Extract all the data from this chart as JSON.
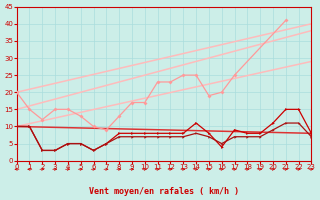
{
  "background_color": "#cceee8",
  "grid_color": "#aadddd",
  "xlabel": "Vent moyen/en rafales ( km/h )",
  "xlabel_color": "#cc0000",
  "xlabel_fontsize": 6,
  "xlim": [
    0,
    23
  ],
  "ylim": [
    0,
    45
  ],
  "yticks": [
    0,
    5,
    10,
    15,
    20,
    25,
    30,
    35,
    40,
    45
  ],
  "xticks": [
    0,
    1,
    2,
    3,
    4,
    5,
    6,
    7,
    8,
    9,
    10,
    11,
    12,
    13,
    14,
    15,
    16,
    17,
    18,
    19,
    20,
    21,
    22,
    23
  ],
  "x": [
    0,
    1,
    2,
    3,
    4,
    5,
    6,
    7,
    8,
    9,
    10,
    11,
    12,
    13,
    14,
    15,
    16,
    17,
    18,
    19,
    20,
    21,
    22,
    23
  ],
  "line_straight1": [
    20,
    40
  ],
  "line_straight2": [
    15,
    38
  ],
  "line_straight3": [
    10,
    29
  ],
  "line_straight4": [
    10,
    8
  ],
  "series_pink": [
    20,
    15,
    12,
    15,
    15,
    13,
    10,
    9,
    13,
    17,
    17,
    23,
    23,
    25,
    25,
    19,
    20,
    25,
    null,
    null,
    null,
    41,
    null,
    null
  ],
  "series_darkred": [
    10,
    10,
    3,
    3,
    5,
    5,
    3,
    5,
    8,
    8,
    8,
    8,
    8,
    8,
    11,
    8,
    4,
    9,
    8,
    8,
    11,
    15,
    15,
    8
  ],
  "series_darkred2": [
    10,
    10,
    3,
    3,
    5,
    5,
    3,
    5,
    7,
    7,
    7,
    7,
    7,
    7,
    8,
    7,
    5,
    7,
    7,
    7,
    9,
    11,
    11,
    7
  ],
  "tick_fontsize": 5,
  "marker_size": 2.0,
  "lw_pink": 0.9,
  "lw_red": 0.9,
  "lw_straight": 1.1,
  "pink_color": "#ff9999",
  "dark_red_color": "#cc0000",
  "dark_red2_color": "#aa1111",
  "straight_color": "#ffbbbb",
  "straight4_color": "#dd3333"
}
